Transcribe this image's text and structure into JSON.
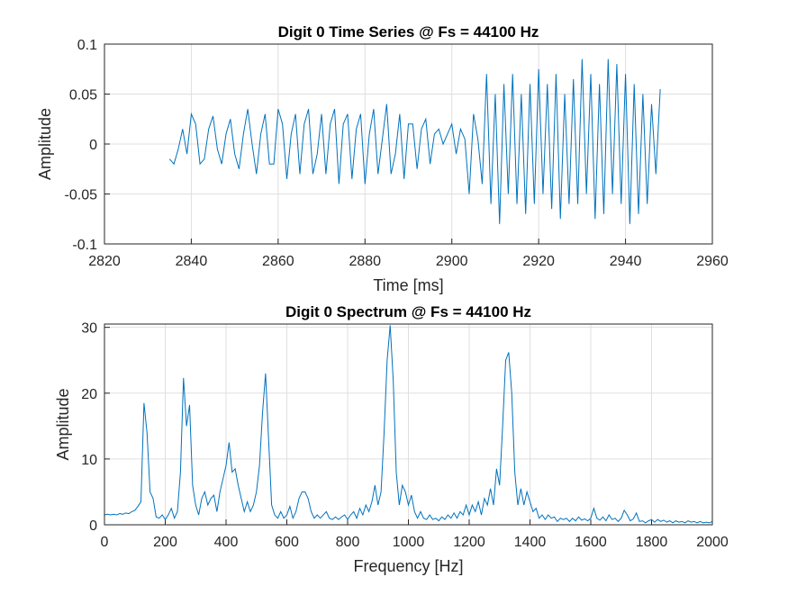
{
  "chart_data": [
    {
      "type": "line",
      "title": "Digit 0 Time Series @ Fs = 44100 Hz",
      "xlabel": "Time [ms]",
      "ylabel": "Amplitude",
      "x": [
        2835,
        2836,
        2837,
        2838,
        2839,
        2840,
        2841,
        2842,
        2843,
        2844,
        2845,
        2846,
        2847,
        2848,
        2849,
        2850,
        2851,
        2852,
        2853,
        2854,
        2855,
        2856,
        2857,
        2858,
        2859,
        2860,
        2861,
        2862,
        2863,
        2864,
        2865,
        2866,
        2867,
        2868,
        2869,
        2870,
        2871,
        2872,
        2873,
        2874,
        2875,
        2876,
        2877,
        2878,
        2879,
        2880,
        2881,
        2882,
        2883,
        2884,
        2885,
        2886,
        2887,
        2888,
        2889,
        2890,
        2891,
        2892,
        2893,
        2894,
        2895,
        2896,
        2897,
        2898,
        2899,
        2900,
        2901,
        2902,
        2903,
        2904,
        2905,
        2906,
        2907,
        2908,
        2909,
        2910,
        2911,
        2912,
        2913,
        2914,
        2915,
        2916,
        2917,
        2918,
        2919,
        2920,
        2921,
        2922,
        2923,
        2924,
        2925,
        2926,
        2927,
        2928,
        2929,
        2930,
        2931,
        2932,
        2933,
        2934,
        2935,
        2936,
        2937,
        2938,
        2939,
        2940,
        2941,
        2942,
        2943,
        2944,
        2945,
        2946,
        2947,
        2948
      ],
      "series": [
        {
          "color": "#0072bd",
          "values": [
            -0.015,
            -0.02,
            -0.005,
            0.015,
            -0.01,
            0.03,
            0.02,
            -0.02,
            -0.015,
            0.015,
            0.028,
            -0.005,
            -0.02,
            0.01,
            0.025,
            -0.01,
            -0.025,
            0.01,
            0.035,
            0.0,
            -0.03,
            0.01,
            0.03,
            -0.02,
            -0.02,
            0.035,
            0.02,
            -0.035,
            0.01,
            0.03,
            -0.03,
            0.02,
            0.035,
            -0.03,
            -0.01,
            0.03,
            -0.03,
            0.02,
            0.035,
            -0.04,
            0.02,
            0.03,
            -0.035,
            0.015,
            0.03,
            -0.04,
            0.01,
            0.035,
            -0.03,
            0.005,
            0.04,
            -0.03,
            -0.01,
            0.03,
            -0.035,
            0.02,
            0.02,
            -0.025,
            0.015,
            0.025,
            -0.02,
            0.01,
            0.015,
            0.0,
            0.01,
            0.02,
            -0.01,
            0.015,
            0.005,
            -0.05,
            0.03,
            0.005,
            -0.04,
            0.07,
            -0.06,
            0.05,
            -0.08,
            0.06,
            -0.05,
            0.07,
            -0.06,
            0.05,
            -0.07,
            0.06,
            -0.06,
            0.075,
            -0.05,
            0.06,
            -0.065,
            0.07,
            -0.075,
            0.05,
            -0.06,
            0.065,
            -0.06,
            0.085,
            -0.05,
            0.07,
            -0.075,
            0.06,
            -0.07,
            0.085,
            -0.05,
            0.08,
            -0.06,
            0.07,
            -0.08,
            0.06,
            -0.07,
            0.05,
            -0.06,
            0.04,
            -0.03,
            0.055
          ]
        }
      ],
      "xlim": [
        2820,
        2960
      ],
      "xticks": [
        2820,
        2840,
        2860,
        2880,
        2900,
        2920,
        2940,
        2960
      ],
      "ylim": [
        -0.1,
        0.1
      ],
      "yticks": [
        -0.1,
        -0.05,
        0,
        0.05,
        0.1
      ],
      "grid": true
    },
    {
      "type": "line",
      "title": "Digit 0 Spectrum @ Fs = 44100 Hz",
      "xlabel": "Frequency [Hz]",
      "ylabel": "Amplitude",
      "x": [
        0,
        10,
        20,
        30,
        40,
        50,
        60,
        70,
        80,
        90,
        100,
        110,
        120,
        130,
        140,
        150,
        160,
        170,
        180,
        190,
        200,
        210,
        220,
        230,
        240,
        250,
        260,
        270,
        280,
        290,
        300,
        310,
        320,
        330,
        340,
        350,
        360,
        370,
        380,
        390,
        400,
        410,
        420,
        430,
        440,
        450,
        460,
        470,
        480,
        490,
        500,
        510,
        520,
        530,
        540,
        550,
        560,
        570,
        580,
        590,
        600,
        610,
        620,
        630,
        640,
        650,
        660,
        670,
        680,
        690,
        700,
        710,
        720,
        730,
        740,
        750,
        760,
        770,
        780,
        790,
        800,
        810,
        820,
        830,
        840,
        850,
        860,
        870,
        880,
        890,
        900,
        910,
        920,
        930,
        940,
        950,
        960,
        970,
        980,
        990,
        1000,
        1010,
        1020,
        1030,
        1040,
        1050,
        1060,
        1070,
        1080,
        1090,
        1100,
        1110,
        1120,
        1130,
        1140,
        1150,
        1160,
        1170,
        1180,
        1190,
        1200,
        1210,
        1220,
        1230,
        1240,
        1250,
        1260,
        1270,
        1280,
        1290,
        1300,
        1310,
        1320,
        1330,
        1340,
        1350,
        1360,
        1370,
        1380,
        1390,
        1400,
        1410,
        1420,
        1430,
        1440,
        1450,
        1460,
        1470,
        1480,
        1490,
        1500,
        1510,
        1520,
        1530,
        1540,
        1550,
        1560,
        1570,
        1580,
        1590,
        1600,
        1610,
        1620,
        1630,
        1640,
        1650,
        1660,
        1670,
        1680,
        1690,
        1700,
        1710,
        1720,
        1730,
        1740,
        1750,
        1760,
        1770,
        1780,
        1790,
        1800,
        1810,
        1820,
        1830,
        1840,
        1850,
        1860,
        1870,
        1880,
        1890,
        1900,
        1910,
        1920,
        1930,
        1940,
        1950,
        1960,
        1970,
        1980,
        1990,
        2000
      ],
      "series": [
        {
          "color": "#0072bd",
          "values": [
            1.5,
            1.6,
            1.5,
            1.6,
            1.5,
            1.7,
            1.6,
            1.8,
            1.7,
            2.0,
            2.2,
            2.8,
            3.5,
            18.5,
            14,
            5,
            4,
            1.2,
            1.0,
            1.5,
            0.8,
            1.5,
            2.5,
            1.0,
            2.0,
            8,
            22.3,
            15,
            18.2,
            6,
            3,
            1.5,
            4,
            5,
            3,
            4,
            4.5,
            2,
            5,
            7,
            9,
            12.5,
            8,
            8.5,
            6,
            4,
            2,
            3.5,
            2,
            3,
            5,
            9,
            17,
            23,
            13,
            3,
            1.5,
            1,
            2,
            1,
            1.5,
            2.8,
            1,
            2,
            4,
            5,
            5,
            4,
            2,
            1,
            1.5,
            1,
            1.5,
            2,
            1,
            0.8,
            1.2,
            0.8,
            1.2,
            1.5,
            0.8,
            1.5,
            2,
            1,
            2.5,
            1.5,
            3,
            2,
            3.5,
            6,
            3,
            5,
            14,
            25,
            30.3,
            22,
            8,
            3,
            6,
            5,
            3,
            4.5,
            2,
            1,
            2,
            1,
            0.8,
            1.5,
            0.8,
            1,
            0.6,
            1.2,
            0.8,
            1.5,
            1,
            1.8,
            1,
            2,
            1.5,
            3,
            1.5,
            3,
            2,
            3.5,
            1.5,
            4,
            3,
            5.5,
            3,
            8.5,
            6,
            15,
            25,
            26.2,
            20,
            8,
            3,
            5.5,
            3,
            5,
            3.5,
            2,
            2.5,
            1,
            1.5,
            0.8,
            1.5,
            1,
            1.2,
            0.5,
            1,
            0.8,
            1,
            0.5,
            1,
            0.6,
            1.2,
            0.7,
            0.9,
            0.6,
            1,
            2.5,
            1,
            0.7,
            1.2,
            0.6,
            1.5,
            0.8,
            1,
            0.5,
            1,
            2.2,
            1.5,
            0.6,
            0.9,
            1.8,
            0.5,
            0.6,
            0.3,
            0.6,
            0.8,
            0.4,
            0.8,
            0.5,
            0.7,
            0.4,
            0.6,
            0.3,
            0.6,
            0.4,
            0.5,
            0.3,
            0.6,
            0.4,
            0.5,
            0.3,
            0.5,
            0.3,
            0.4,
            0.3,
            0.5
          ]
        }
      ],
      "xlim": [
        0,
        2000
      ],
      "xticks": [
        0,
        200,
        400,
        600,
        800,
        1000,
        1200,
        1400,
        1600,
        1800,
        2000
      ],
      "ylim": [
        0,
        30.5
      ],
      "yticks": [
        0,
        10,
        20,
        30
      ],
      "grid": true
    }
  ]
}
